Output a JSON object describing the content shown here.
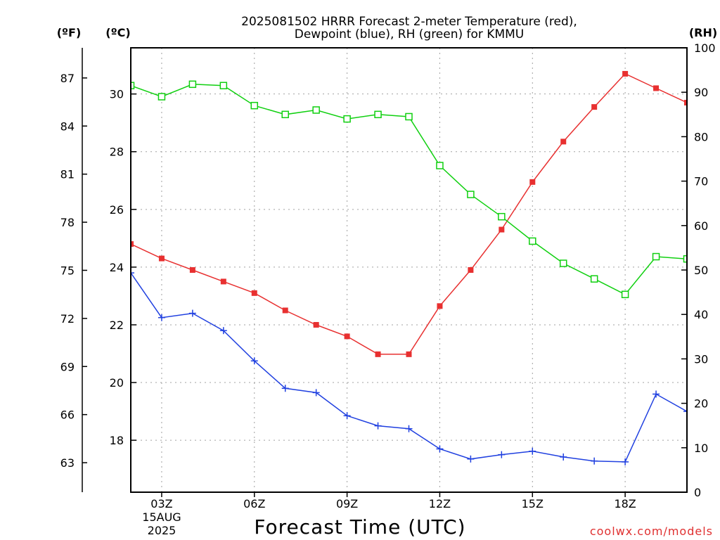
{
  "chart_data": {
    "type": "line",
    "title_line1": "2025081502 HRRR Forecast 2-meter Temperature (red),",
    "title_line2": "Dewpoint (blue), RH (green) for KMMU",
    "unit_f": "(ºF)",
    "unit_c": "(ºC)",
    "unit_rh": "(RH)",
    "xlabel": "Forecast Time (UTC)",
    "credit": "coolwx.com/models",
    "x_hours": [
      2,
      3,
      4,
      5,
      6,
      7,
      8,
      9,
      10,
      11,
      12,
      13,
      14,
      15,
      16,
      17,
      18,
      19,
      20
    ],
    "x_range": [
      2,
      20
    ],
    "x_ticks": [
      3,
      6,
      9,
      12,
      15,
      18
    ],
    "x_tick_labels": [
      "03Z",
      "06Z",
      "09Z",
      "12Z",
      "15Z",
      "18Z"
    ],
    "date_day": "15AUG",
    "date_year": "2025",
    "c_range": [
      16.2,
      31.6
    ],
    "c_ticks": [
      18,
      20,
      22,
      24,
      26,
      28,
      30
    ],
    "f_ticks": [
      63,
      66,
      69,
      72,
      75,
      78,
      81,
      84,
      87
    ],
    "rh_range": [
      0,
      100
    ],
    "rh_ticks": [
      0,
      10,
      20,
      30,
      40,
      50,
      60,
      70,
      80,
      90,
      100
    ],
    "colors": {
      "temperature": "#e83030",
      "dewpoint": "#2040e0",
      "rh": "#10d010",
      "grid": "#a0a0a0"
    },
    "series": [
      {
        "key": "temperature",
        "values": [
          24.8,
          24.3,
          23.9,
          23.5,
          23.1,
          22.5,
          22.0,
          21.6,
          20.98,
          20.98,
          22.65,
          23.9,
          25.3,
          26.95,
          28.35,
          29.55,
          30.7,
          30.2,
          29.7
        ]
      },
      {
        "key": "dewpoint",
        "values": [
          23.8,
          22.25,
          22.4,
          21.8,
          20.75,
          19.8,
          19.65,
          18.85,
          18.5,
          18.4,
          17.7,
          17.35,
          17.5,
          17.62,
          17.42,
          17.28,
          17.25,
          19.6,
          19.0
        ]
      },
      {
        "key": "rh",
        "values": [
          91.5,
          89.0,
          91.8,
          91.5,
          87.0,
          85.0,
          86.0,
          84.0,
          85.0,
          84.5,
          73.5,
          67.0,
          62.0,
          56.5,
          51.5,
          48.0,
          44.5,
          53.0,
          52.5
        ]
      }
    ]
  }
}
